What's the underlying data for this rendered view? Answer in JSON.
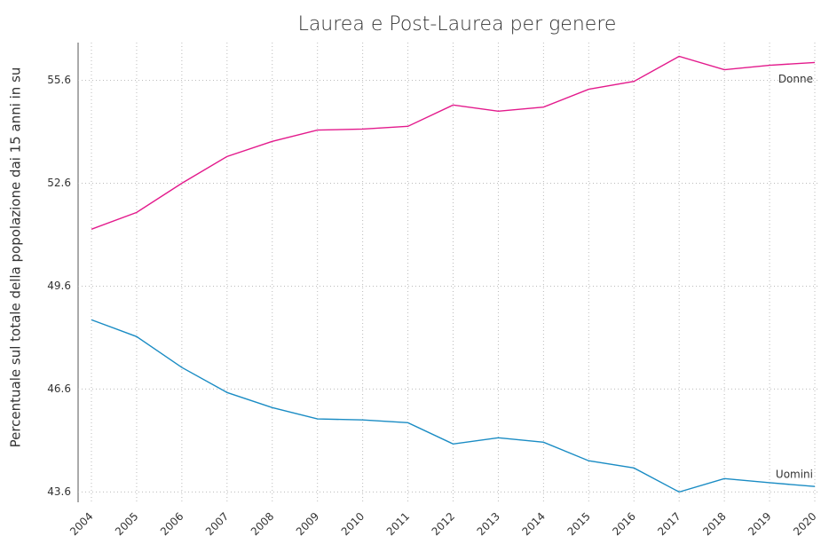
{
  "chart_data": {
    "type": "line",
    "title": "Laurea e Post-Laurea per genere",
    "y_label": "Percentuale sul totale della popolazione dai 15 anni in su",
    "categories": [
      "2004",
      "2005",
      "2006",
      "2007",
      "2008",
      "2009",
      "2010",
      "2011",
      "2012",
      "2013",
      "2014",
      "2015",
      "2016",
      "2017",
      "2018",
      "2019",
      "2020"
    ],
    "series": [
      {
        "name": "Donne",
        "color": "#e31a8c",
        "values": [
          51.26,
          51.75,
          52.6,
          53.38,
          53.82,
          54.15,
          54.18,
          54.26,
          54.88,
          54.7,
          54.82,
          55.34,
          55.57,
          56.3,
          55.91,
          56.04,
          56.12
        ]
      },
      {
        "name": "Uomini",
        "color": "#1a8cc4",
        "values": [
          48.62,
          48.13,
          47.23,
          46.5,
          46.06,
          45.73,
          45.7,
          45.62,
          45.0,
          45.18,
          45.05,
          44.51,
          44.3,
          43.6,
          43.99,
          43.87,
          43.76
        ]
      }
    ],
    "ylim": [
      43.3,
      56.7
    ],
    "yticks": [
      43.6,
      46.6,
      49.6,
      52.6,
      55.6
    ],
    "grid": true
  }
}
